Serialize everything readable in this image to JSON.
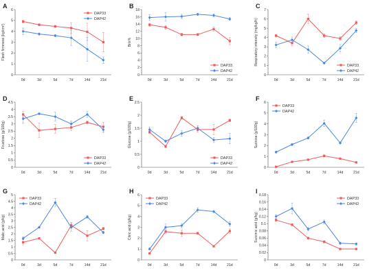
{
  "colors": {
    "DAP33": "#ee5b5b",
    "DAP42": "#4a86e0",
    "axis": "#555555"
  },
  "chart_data": [
    {
      "type": "line",
      "panel": "A",
      "categories": [
        "0d",
        "3d",
        "5d",
        "7d",
        "14d",
        "21d"
      ],
      "ylabel": "Flesh firmness (kg/cm²)",
      "ylim": [
        0,
        6
      ],
      "yticks": [
        0,
        1,
        2,
        3,
        4,
        5,
        6
      ],
      "legend": "top-right",
      "series": [
        {
          "name": "DAP33",
          "values": [
            4.9,
            4.6,
            4.45,
            4.3,
            3.95,
            3.0
          ],
          "errors": [
            0.12,
            0.1,
            0.1,
            0.5,
            0.8,
            0.9
          ]
        },
        {
          "name": "DAP42",
          "values": [
            4.0,
            3.75,
            3.6,
            3.4,
            2.35,
            1.35
          ],
          "errors": [
            0.3,
            0.1,
            0.1,
            0.7,
            1.1,
            0.3
          ]
        }
      ]
    },
    {
      "type": "line",
      "panel": "B",
      "categories": [
        "0d",
        "3d",
        "5d",
        "7d",
        "14d",
        "21d"
      ],
      "ylabel": "Brix%",
      "ylim": [
        0,
        18
      ],
      "yticks": [
        0,
        2,
        4,
        6,
        8,
        10,
        12,
        14,
        16,
        18
      ],
      "legend": "bottom-right",
      "series": [
        {
          "name": "DAP33",
          "values": [
            13.8,
            13.1,
            11.1,
            11.1,
            12.6,
            9.3
          ],
          "errors": [
            0.4,
            0.5,
            0.4,
            0.3,
            0.6,
            1.0
          ]
        },
        {
          "name": "DAP42",
          "values": [
            15.8,
            16.0,
            16.1,
            16.7,
            16.4,
            15.4
          ],
          "errors": [
            0.8,
            1.2,
            0.6,
            0.3,
            0.4,
            0.4
          ]
        }
      ]
    },
    {
      "type": "line",
      "panel": "C",
      "categories": [
        "0d",
        "3d",
        "5d",
        "7d",
        "14d",
        "21d"
      ],
      "ylabel": "Respiratory intensity (mg/kg/h)",
      "ylim": [
        0,
        7
      ],
      "yticks": [
        0,
        1,
        2,
        3,
        4,
        5,
        6,
        7
      ],
      "legend": "bottom-right",
      "series": [
        {
          "name": "DAP33",
          "values": [
            4.2,
            3.4,
            6.0,
            4.2,
            3.9,
            5.6
          ],
          "errors": [
            0.15,
            0.3,
            0.5,
            0.2,
            0.2,
            0.2
          ]
        },
        {
          "name": "DAP42",
          "values": [
            3.2,
            3.75,
            2.7,
            1.25,
            2.85,
            4.75
          ],
          "errors": [
            0.3,
            0.3,
            0.4,
            0.1,
            0.4,
            0.2
          ]
        }
      ]
    },
    {
      "type": "line",
      "panel": "D",
      "categories": [
        "0d",
        "3d",
        "5d",
        "7d",
        "14d",
        "21d"
      ],
      "ylabel": "Fructose (g/100g)",
      "ylim": [
        0,
        4.5
      ],
      "yticks": [
        0,
        0.5,
        1,
        1.5,
        2,
        2.5,
        3,
        3.5,
        4,
        4.5
      ],
      "legend": "bottom-right",
      "series": [
        {
          "name": "DAP33",
          "values": [
            3.65,
            2.55,
            2.65,
            2.75,
            3.1,
            2.8
          ],
          "errors": [
            0.2,
            0.5,
            0.3,
            0.2,
            0.1,
            0.3
          ]
        },
        {
          "name": "DAP42",
          "values": [
            3.35,
            3.7,
            3.5,
            3.0,
            3.65,
            2.6
          ],
          "errors": [
            0.3,
            0.05,
            0.3,
            0.2,
            0.2,
            0.2
          ]
        }
      ]
    },
    {
      "type": "line",
      "panel": "E",
      "categories": [
        "0d",
        "3d",
        "5d",
        "7d",
        "14d",
        "21d"
      ],
      "ylabel": "Glucose (g/100g)",
      "ylim": [
        0,
        2.5
      ],
      "yticks": [
        0,
        0.5,
        1,
        1.5,
        2,
        2.5
      ],
      "legend": "bottom-right",
      "series": [
        {
          "name": "DAP33",
          "values": [
            1.35,
            0.8,
            1.9,
            1.45,
            1.45,
            1.8
          ],
          "errors": [
            0.05,
            0.05,
            0.05,
            0.1,
            0.2,
            0.05
          ]
        },
        {
          "name": "DAP42",
          "values": [
            1.45,
            1.0,
            1.3,
            1.5,
            1.05,
            1.1
          ],
          "errors": [
            0.1,
            0.05,
            0.1,
            0.1,
            0.1,
            0.2
          ]
        }
      ]
    },
    {
      "type": "line",
      "panel": "F",
      "categories": [
        "0d",
        "3d",
        "5d",
        "7d",
        "14d",
        "21d"
      ],
      "ylabel": "Sucrose (g/100g)",
      "ylim": [
        0,
        6
      ],
      "yticks": [
        0,
        1,
        2,
        3,
        4,
        5,
        6
      ],
      "legend": "top-left",
      "series": [
        {
          "name": "DAP33",
          "values": [
            0.05,
            0.5,
            0.7,
            1.05,
            0.8,
            0.45
          ],
          "errors": [
            0.05,
            0.05,
            0.05,
            0.1,
            0.05,
            0.05
          ]
        },
        {
          "name": "DAP42",
          "values": [
            1.4,
            2.1,
            2.7,
            4.05,
            2.25,
            4.55
          ],
          "errors": [
            0.1,
            0.1,
            0.1,
            0.3,
            0.1,
            0.4
          ]
        }
      ]
    },
    {
      "type": "line",
      "panel": "G",
      "categories": [
        "0d",
        "3d",
        "5d",
        "7d",
        "14d",
        "21d"
      ],
      "ylabel": "Malic acid (g/kg)",
      "ylim": [
        0,
        5
      ],
      "yticks": [
        0,
        0.5,
        1,
        1.5,
        2,
        2.5,
        3,
        3.5,
        4,
        4.5,
        5
      ],
      "legend": "top-left",
      "series": [
        {
          "name": "DAP33",
          "values": [
            1.35,
            1.65,
            0.55,
            2.65,
            1.85,
            2.4
          ],
          "errors": [
            0.2,
            0.05,
            0.05,
            0.2,
            0.4,
            0.1
          ]
        },
        {
          "name": "DAP42",
          "values": [
            1.65,
            2.5,
            4.4,
            2.5,
            3.3,
            2.1
          ],
          "errors": [
            0.1,
            0.05,
            0.3,
            0.3,
            0.1,
            0.1
          ]
        }
      ]
    },
    {
      "type": "line",
      "panel": "H",
      "categories": [
        "0d",
        "3d",
        "5d",
        "7d",
        "14d",
        "21d"
      ],
      "ylabel": "Citric acid (g/kg)",
      "ylim": [
        0,
        6
      ],
      "yticks": [
        0,
        1,
        2,
        3,
        4,
        5,
        6
      ],
      "legend": "top-left",
      "series": [
        {
          "name": "DAP33",
          "values": [
            0.6,
            2.6,
            2.45,
            2.45,
            1.25,
            2.65
          ],
          "errors": [
            0.05,
            0.2,
            0.3,
            0.1,
            0.05,
            0.2
          ]
        },
        {
          "name": "DAP42",
          "values": [
            1.0,
            3.0,
            3.15,
            4.6,
            4.45,
            3.3
          ],
          "errors": [
            0.1,
            0.3,
            0.2,
            0.2,
            0.1,
            0.2
          ]
        }
      ]
    },
    {
      "type": "line",
      "panel": "I",
      "categories": [
        "0d",
        "3d",
        "5d",
        "7d",
        "14d",
        "21d"
      ],
      "ylabel": "Succinic acid (g/kg)",
      "ylim": [
        0,
        0.18
      ],
      "yticks": [
        0,
        0.02,
        0.04,
        0.06,
        0.08,
        0.1,
        0.12,
        0.14,
        0.16,
        0.18
      ],
      "legend": "top-right",
      "series": [
        {
          "name": "DAP33",
          "values": [
            0.11,
            0.097,
            0.06,
            0.05,
            0.03,
            0.03
          ],
          "errors": [
            0.003,
            0.003,
            0.003,
            0.003,
            0.002,
            0.002
          ]
        },
        {
          "name": "DAP42",
          "values": [
            0.12,
            0.142,
            0.085,
            0.105,
            0.046,
            0.044
          ],
          "errors": [
            0.005,
            0.015,
            0.005,
            0.005,
            0.003,
            0.003
          ]
        }
      ]
    }
  ]
}
